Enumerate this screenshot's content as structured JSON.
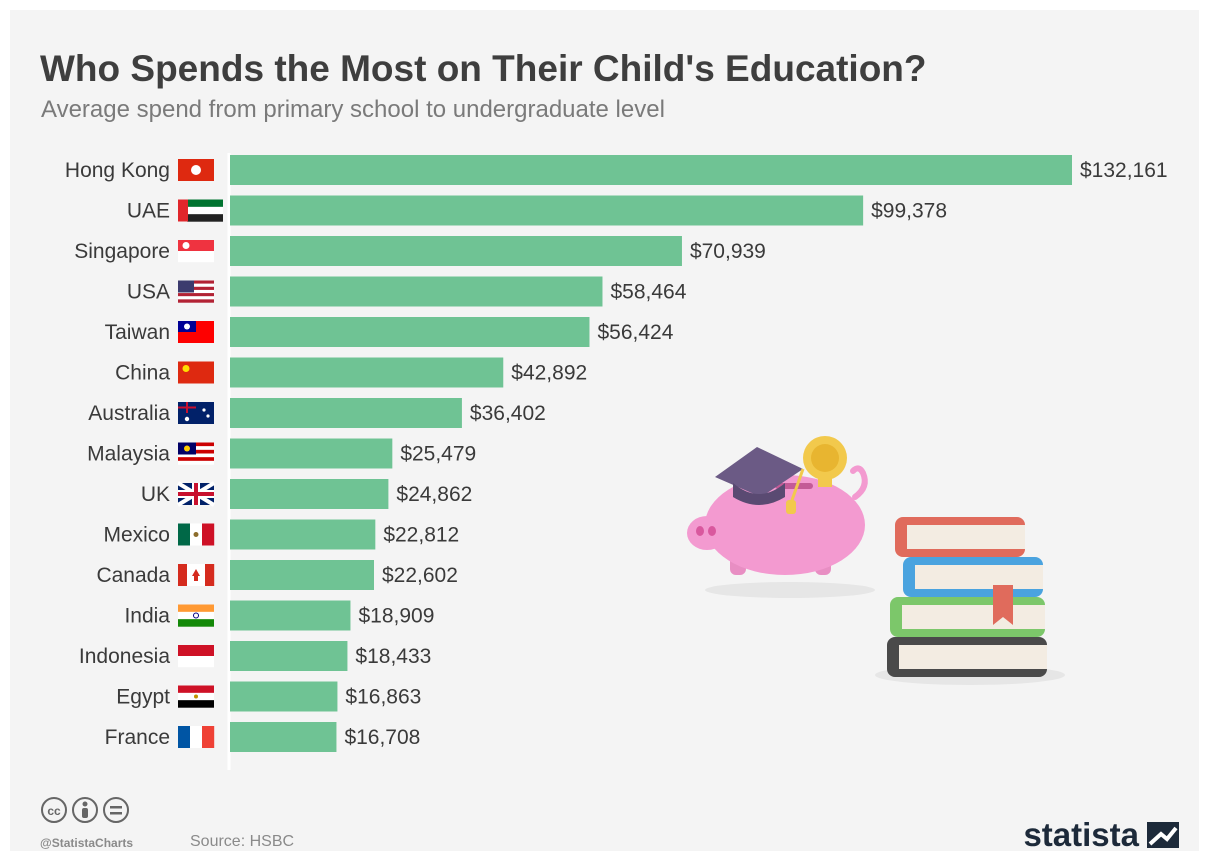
{
  "header": {
    "title": "Who Spends the Most on Their Child's Education?",
    "subtitle": "Average spend from primary school to undergraduate level"
  },
  "chart_data": {
    "type": "bar",
    "orientation": "horizontal",
    "title": "Who Spends the Most on Their Child's Education?",
    "subtitle": "Average spend from primary school to undergraduate level",
    "categories": [
      "Hong Kong",
      "UAE",
      "Singapore",
      "USA",
      "Taiwan",
      "China",
      "Australia",
      "Malaysia",
      "UK",
      "Mexico",
      "Canada",
      "India",
      "Indonesia",
      "Egypt",
      "France"
    ],
    "values": [
      132161,
      99378,
      70939,
      58464,
      56424,
      42892,
      36402,
      25479,
      24862,
      22812,
      22602,
      18909,
      18433,
      16863,
      16708
    ],
    "value_labels": [
      "$132,161",
      "$99,378",
      "$70,939",
      "$58,464",
      "$56,424",
      "$42,892",
      "$36,402",
      "$25,479",
      "$24,862",
      "$22,812",
      "$22,602",
      "$18,909",
      "$18,433",
      "$16,863",
      "$16,708"
    ],
    "flags": [
      "hong-kong",
      "uae",
      "singapore",
      "usa",
      "taiwan",
      "china",
      "australia",
      "malaysia",
      "uk",
      "mexico",
      "canada",
      "india",
      "indonesia",
      "egypt",
      "france"
    ],
    "xlim": [
      0,
      132161
    ],
    "grid": false,
    "legend": "none",
    "bar_color": "#6fc394"
  },
  "footer": {
    "handle": "@StatistaCharts",
    "source": "Source: HSBC",
    "brand": "statista",
    "icons": [
      "cc-icon",
      "attribution-icon",
      "no-derivatives-icon"
    ]
  },
  "colors": {
    "background": "#f4f4f4",
    "title": "#3e3e3e",
    "subtitle": "#7a7a7a",
    "bar": "#6fc394",
    "brand": "#1d2a3a"
  }
}
